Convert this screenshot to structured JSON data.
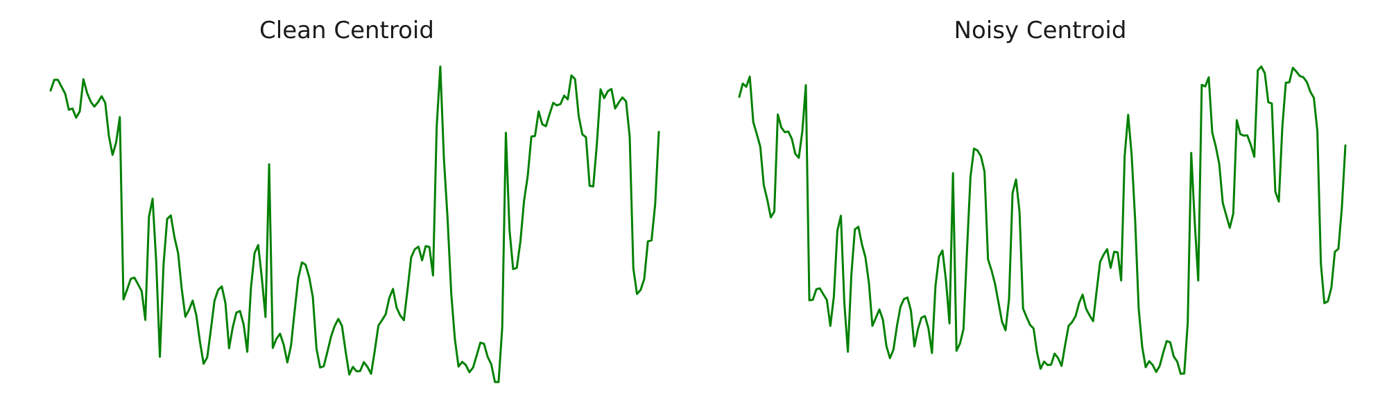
{
  "chart_data": [
    {
      "type": "line",
      "title": "Clean Centroid",
      "xlabel": "",
      "ylabel": "",
      "axes_visible": false,
      "grid": false,
      "ylim": [
        0,
        1
      ],
      "series": [
        {
          "color": "#008000",
          "values": [
            0.924,
            0.958,
            0.958,
            0.936,
            0.914,
            0.863,
            0.867,
            0.838,
            0.858,
            0.96,
            0.917,
            0.889,
            0.873,
            0.887,
            0.906,
            0.885,
            0.78,
            0.72,
            0.76,
            0.84,
            0.262,
            0.293,
            0.327,
            0.331,
            0.31,
            0.288,
            0.197,
            0.524,
            0.581,
            0.379,
            0.08,
            0.372,
            0.517,
            0.528,
            0.459,
            0.409,
            0.295,
            0.207,
            0.229,
            0.258,
            0.212,
            0.128,
            0.058,
            0.078,
            0.166,
            0.258,
            0.292,
            0.303,
            0.25,
            0.107,
            0.173,
            0.22,
            0.225,
            0.182,
            0.096,
            0.298,
            0.409,
            0.434,
            0.329,
            0.206,
            0.69,
            0.108,
            0.137,
            0.153,
            0.118,
            0.062,
            0.115,
            0.225,
            0.33,
            0.379,
            0.372,
            0.332,
            0.269,
            0.106,
            0.046,
            0.05,
            0.096,
            0.144,
            0.178,
            0.2,
            0.178,
            0.097,
            0.024,
            0.048,
            0.034,
            0.035,
            0.063,
            0.048,
            0.026,
            0.099,
            0.179,
            0.196,
            0.215,
            0.267,
            0.295,
            0.236,
            0.211,
            0.196,
            0.293,
            0.395,
            0.421,
            0.429,
            0.386,
            0.431,
            0.428,
            0.338,
            0.808,
            1.0,
            0.706,
            0.517,
            0.281,
            0.136,
            0.049,
            0.064,
            0.054,
            0.031,
            0.046,
            0.085,
            0.125,
            0.121,
            0.08,
            0.056,
            0.0,
            0.0,
            0.173,
            0.79,
            0.482,
            0.358,
            0.362,
            0.446,
            0.575,
            0.653,
            0.778,
            0.78,
            0.858,
            0.817,
            0.811,
            0.849,
            0.885,
            0.877,
            0.881,
            0.908,
            0.896,
            0.972,
            0.96,
            0.843,
            0.785,
            0.776,
            0.622,
            0.62,
            0.756,
            0.928,
            0.9,
            0.922,
            0.929,
            0.867,
            0.886,
            0.902,
            0.89,
            0.778,
            0.361,
            0.279,
            0.292,
            0.327,
            0.446,
            0.449,
            0.564,
            0.793
          ]
        }
      ]
    },
    {
      "type": "line",
      "title": "Noisy Centroid",
      "xlabel": "",
      "ylabel": "",
      "axes_visible": false,
      "grid": false,
      "ylim": [
        0,
        1
      ],
      "series": [
        {
          "color": "#008000",
          "values": [
            0.904,
            0.946,
            0.936,
            0.968,
            0.824,
            0.786,
            0.746,
            0.624,
            0.578,
            0.522,
            0.54,
            0.848,
            0.807,
            0.792,
            0.794,
            0.771,
            0.723,
            0.711,
            0.795,
            0.941,
            0.259,
            0.261,
            0.294,
            0.297,
            0.278,
            0.26,
            0.178,
            0.271,
            0.48,
            0.527,
            0.248,
            0.096,
            0.341,
            0.484,
            0.492,
            0.437,
            0.396,
            0.315,
            0.178,
            0.204,
            0.23,
            0.197,
            0.114,
            0.076,
            0.102,
            0.177,
            0.238,
            0.263,
            0.268,
            0.226,
            0.113,
            0.168,
            0.204,
            0.209,
            0.17,
            0.092,
            0.304,
            0.397,
            0.417,
            0.322,
            0.186,
            0.662,
            0.099,
            0.122,
            0.168,
            0.418,
            0.651,
            0.74,
            0.734,
            0.715,
            0.667,
            0.389,
            0.354,
            0.311,
            0.251,
            0.191,
            0.164,
            0.263,
            0.599,
            0.642,
            0.538,
            0.233,
            0.206,
            0.181,
            0.17,
            0.093,
            0.042,
            0.065,
            0.054,
            0.055,
            0.09,
            0.076,
            0.051,
            0.117,
            0.178,
            0.19,
            0.209,
            0.251,
            0.277,
            0.232,
            0.211,
            0.193,
            0.289,
            0.381,
            0.404,
            0.421,
            0.362,
            0.413,
            0.411,
            0.322,
            0.717,
            0.847,
            0.719,
            0.512,
            0.233,
            0.112,
            0.047,
            0.066,
            0.054,
            0.032,
            0.051,
            0.093,
            0.13,
            0.126,
            0.081,
            0.065,
            0.026,
            0.027,
            0.187,
            0.726,
            0.507,
            0.322,
            0.942,
            0.937,
            0.966,
            0.791,
            0.747,
            0.691,
            0.568,
            0.528,
            0.489,
            0.534,
            0.83,
            0.786,
            0.781,
            0.782,
            0.752,
            0.714,
            0.988,
            1.0,
            0.979,
            0.887,
            0.883,
            0.604,
            0.572,
            0.808,
            0.949,
            0.95,
            0.996,
            0.984,
            0.97,
            0.966,
            0.951,
            0.92,
            0.901,
            0.796,
            0.376,
            0.25,
            0.256,
            0.299,
            0.413,
            0.422,
            0.554,
            0.75
          ]
        }
      ]
    }
  ]
}
